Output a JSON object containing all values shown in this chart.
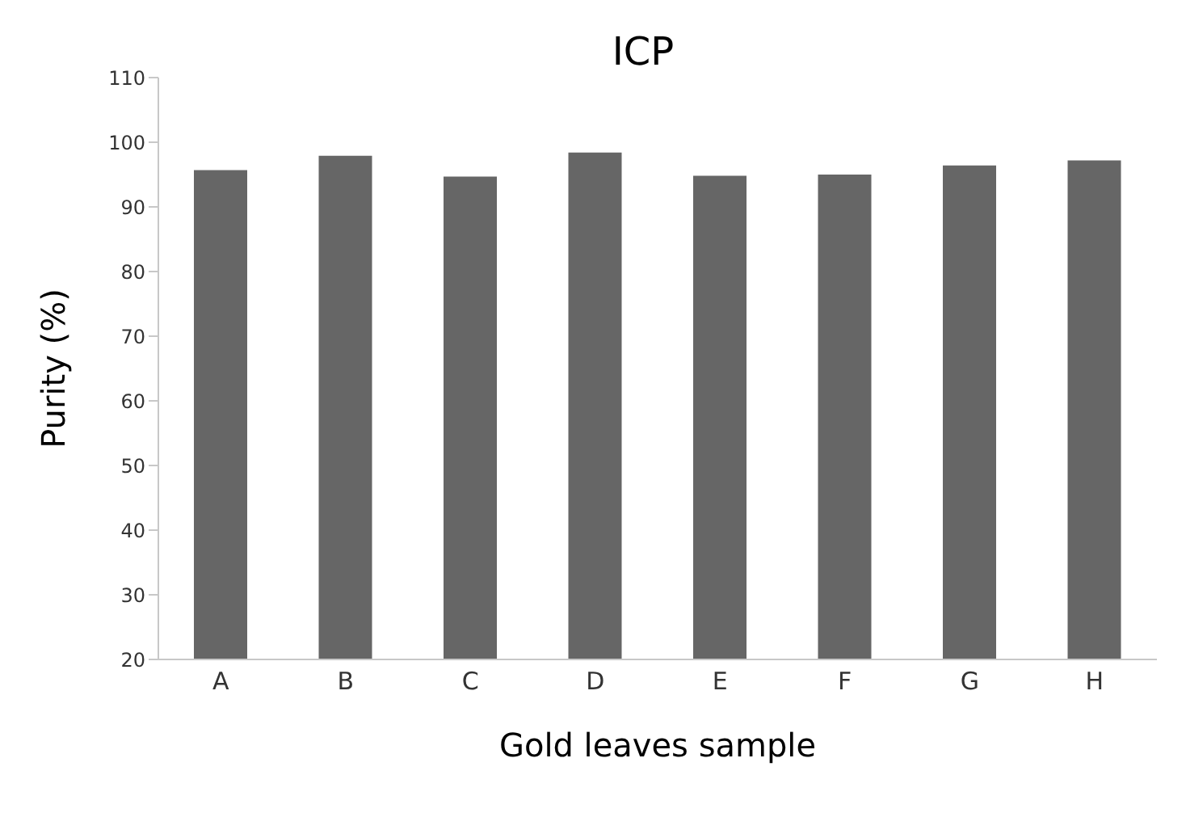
{
  "chart_data": {
    "type": "bar",
    "title": "ICP",
    "xlabel": "Gold leaves sample",
    "ylabel": "Purity (%)",
    "categories": [
      "A",
      "B",
      "C",
      "D",
      "E",
      "F",
      "G",
      "H"
    ],
    "values": [
      95.7,
      97.9,
      94.7,
      98.4,
      94.8,
      95.0,
      96.4,
      97.2
    ],
    "color": "#666666",
    "ylim": [
      20,
      110
    ],
    "yticks": [
      20,
      30,
      40,
      50,
      60,
      70,
      80,
      90,
      100,
      110
    ],
    "grid": false,
    "legend": false
  }
}
